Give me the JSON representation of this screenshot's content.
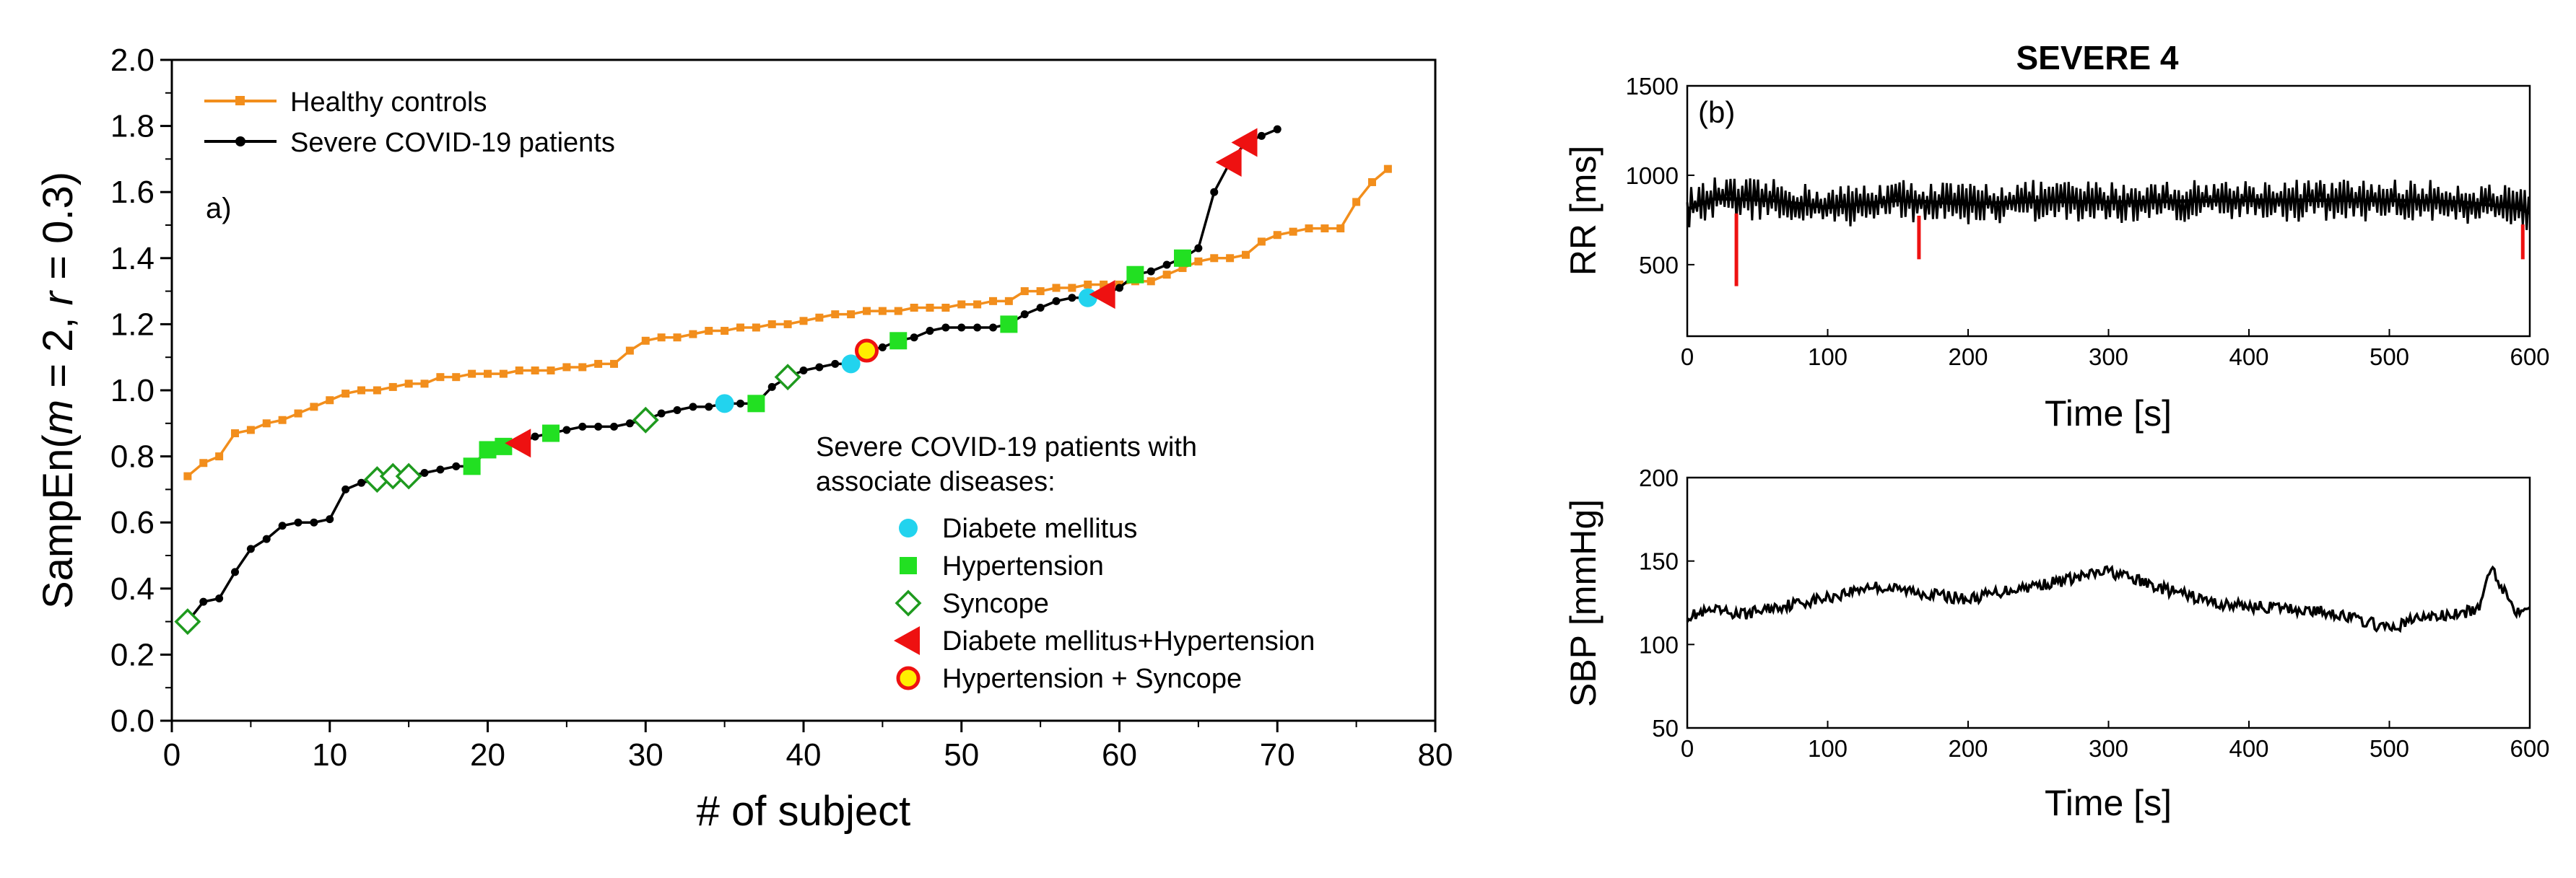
{
  "colors": {
    "healthy": "#f28e1c",
    "severe": "#000000",
    "diabete": "#22d3ee",
    "hypertension": "#22e022",
    "syncope": "#1e9a1e",
    "diab_hyp": "#ee1111",
    "hyp_sync_fill": "#ffee00",
    "hyp_sync_edge": "#ee1111",
    "rr_peaks": "#ee1111"
  },
  "chart_data": [
    {
      "type": "line",
      "panel_label": "a)",
      "xlabel": "# of subject",
      "ylabel_parts": [
        "SampEn(",
        "m",
        " = 2, ",
        "r",
        " = 0.3)"
      ],
      "xlim": [
        0,
        80
      ],
      "ylim": [
        0.0,
        2.0
      ],
      "xticks": [
        0,
        10,
        20,
        30,
        40,
        50,
        60,
        70,
        80
      ],
      "xtick_labels": [
        "0",
        "10",
        "20",
        "30",
        "40",
        "50",
        "60",
        "70",
        "80"
      ],
      "yticks": [
        0.0,
        0.2,
        0.4,
        0.6,
        0.8,
        1.0,
        1.2,
        1.4,
        1.6,
        1.8,
        2.0
      ],
      "ytick_labels": [
        "0.0",
        "0.2",
        "0.4",
        "0.6",
        "0.8",
        "1.0",
        "1.2",
        "1.4",
        "1.6",
        "1.8",
        "2.0"
      ],
      "legend": [
        {
          "label": "Healthy controls",
          "series": "healthy"
        },
        {
          "label": "Severe COVID-19 patients",
          "series": "severe"
        }
      ],
      "series": [
        {
          "name": "Healthy controls",
          "key": "healthy",
          "x": [
            1,
            2,
            3,
            4,
            5,
            6,
            7,
            8,
            9,
            10,
            11,
            12,
            13,
            14,
            15,
            16,
            17,
            18,
            19,
            20,
            21,
            22,
            23,
            24,
            25,
            26,
            27,
            28,
            29,
            30,
            31,
            32,
            33,
            34,
            35,
            36,
            37,
            38,
            39,
            40,
            41,
            42,
            43,
            44,
            45,
            46,
            47,
            48,
            49,
            50,
            51,
            52,
            53,
            54,
            55,
            56,
            57,
            58,
            59,
            60,
            61,
            62,
            63,
            64,
            65,
            66,
            67,
            68,
            69,
            70,
            71,
            72,
            73,
            74,
            75,
            76,
            77
          ],
          "values": [
            0.74,
            0.78,
            0.8,
            0.87,
            0.88,
            0.9,
            0.91,
            0.93,
            0.95,
            0.97,
            0.99,
            1.0,
            1.0,
            1.01,
            1.02,
            1.02,
            1.04,
            1.04,
            1.05,
            1.05,
            1.05,
            1.06,
            1.06,
            1.06,
            1.07,
            1.07,
            1.08,
            1.08,
            1.12,
            1.15,
            1.16,
            1.16,
            1.17,
            1.18,
            1.18,
            1.19,
            1.19,
            1.2,
            1.2,
            1.21,
            1.22,
            1.23,
            1.23,
            1.24,
            1.24,
            1.24,
            1.25,
            1.25,
            1.25,
            1.26,
            1.26,
            1.27,
            1.27,
            1.3,
            1.3,
            1.31,
            1.31,
            1.32,
            1.32,
            1.32,
            1.33,
            1.33,
            1.35,
            1.37,
            1.39,
            1.4,
            1.4,
            1.41,
            1.45,
            1.47,
            1.48,
            1.49,
            1.49,
            1.49,
            1.57,
            1.63,
            1.67
          ]
        },
        {
          "name": "Severe COVID-19 patients",
          "key": "severe",
          "x": [
            1,
            2,
            3,
            4,
            5,
            6,
            7,
            8,
            9,
            10,
            11,
            12,
            13,
            14,
            15,
            16,
            17,
            18,
            19,
            20,
            21,
            22,
            23,
            24,
            25,
            26,
            27,
            28,
            29,
            30,
            31,
            32,
            33,
            34,
            35,
            36,
            37,
            38,
            39,
            40,
            41,
            42,
            43,
            44,
            45,
            46,
            47,
            48,
            49,
            50,
            51,
            52,
            53,
            54,
            55,
            56,
            57,
            58,
            59,
            60,
            61,
            62,
            63,
            64,
            65,
            66,
            67,
            68,
            69,
            70
          ],
          "values": [
            0.3,
            0.36,
            0.37,
            0.45,
            0.52,
            0.55,
            0.59,
            0.6,
            0.6,
            0.61,
            0.7,
            0.72,
            0.73,
            0.74,
            0.74,
            0.75,
            0.76,
            0.77,
            0.77,
            0.82,
            0.83,
            0.84,
            0.86,
            0.87,
            0.88,
            0.89,
            0.89,
            0.89,
            0.9,
            0.91,
            0.93,
            0.94,
            0.95,
            0.95,
            0.96,
            0.96,
            0.96,
            1.01,
            1.04,
            1.06,
            1.07,
            1.08,
            1.08,
            1.12,
            1.13,
            1.15,
            1.16,
            1.18,
            1.19,
            1.19,
            1.19,
            1.19,
            1.2,
            1.23,
            1.25,
            1.27,
            1.28,
            1.28,
            1.29,
            1.31,
            1.35,
            1.36,
            1.38,
            1.4,
            1.43,
            1.6,
            1.69,
            1.75,
            1.77,
            1.79
          ]
        }
      ],
      "markers": [
        {
          "type": "syncope",
          "x": 1,
          "y": 0.3
        },
        {
          "type": "syncope",
          "x": 13,
          "y": 0.73
        },
        {
          "type": "syncope",
          "x": 14,
          "y": 0.74
        },
        {
          "type": "syncope",
          "x": 15,
          "y": 0.74
        },
        {
          "type": "hypertension",
          "x": 19,
          "y": 0.77
        },
        {
          "type": "hypertension",
          "x": 20,
          "y": 0.82
        },
        {
          "type": "hypertension",
          "x": 21,
          "y": 0.83
        },
        {
          "type": "diab_hyp",
          "x": 22,
          "y": 0.84
        },
        {
          "type": "hypertension",
          "x": 24,
          "y": 0.87
        },
        {
          "type": "syncope",
          "x": 30,
          "y": 0.91
        },
        {
          "type": "diabete",
          "x": 35,
          "y": 0.96
        },
        {
          "type": "hypertension",
          "x": 37,
          "y": 0.96
        },
        {
          "type": "syncope",
          "x": 39,
          "y": 1.04
        },
        {
          "type": "diabete",
          "x": 43,
          "y": 1.08
        },
        {
          "type": "hyp_sync",
          "x": 44,
          "y": 1.12
        },
        {
          "type": "hypertension",
          "x": 46,
          "y": 1.15
        },
        {
          "type": "hypertension",
          "x": 53,
          "y": 1.2
        },
        {
          "type": "diabete",
          "x": 58,
          "y": 1.28
        },
        {
          "type": "diab_hyp",
          "x": 59,
          "y": 1.29
        },
        {
          "type": "hypertension",
          "x": 61,
          "y": 1.35
        },
        {
          "type": "hypertension",
          "x": 64,
          "y": 1.4
        },
        {
          "type": "diab_hyp",
          "x": 67,
          "y": 1.69
        },
        {
          "type": "diab_hyp",
          "x": 68,
          "y": 1.75
        }
      ],
      "marker_legend_title": [
        "Severe COVID-19 patients with",
        "associate diseases:"
      ],
      "marker_legend": [
        {
          "type": "diabete",
          "label": "Diabete mellitus"
        },
        {
          "type": "hypertension",
          "label": "Hypertension"
        },
        {
          "type": "syncope",
          "label": "Syncope"
        },
        {
          "type": "diab_hyp",
          "label": "Diabete mellitus+Hypertension"
        },
        {
          "type": "hyp_sync",
          "label": " Hypertension + Syncope"
        }
      ]
    },
    {
      "type": "line",
      "title": "SEVERE 4",
      "panel_label": "(b)",
      "xlabel": "Time [s]",
      "ylabel": "RR [ms]",
      "xlim": [
        0,
        600
      ],
      "ylim": [
        100,
        1500
      ],
      "xticks": [
        0,
        100,
        200,
        300,
        400,
        500,
        600
      ],
      "xtick_labels": [
        "0",
        "100",
        "200",
        "300",
        "400",
        "500",
        "600"
      ],
      "yticks": [
        500,
        1000,
        1500
      ],
      "ytick_labels": [
        "500",
        "1000",
        "1500"
      ],
      "baseline_t": [
        0,
        20,
        60,
        100,
        150,
        200,
        250,
        300,
        350,
        400,
        450,
        500,
        550,
        590,
        600
      ],
      "baseline_v": [
        810,
        870,
        860,
        820,
        860,
        840,
        855,
        850,
        855,
        860,
        860,
        860,
        850,
        820,
        790
      ],
      "osc_amplitude": 120,
      "red_spikes": [
        {
          "t": 35,
          "min": 380
        },
        {
          "t": 165,
          "min": 530
        },
        {
          "t": 595,
          "min": 530
        }
      ]
    },
    {
      "type": "line",
      "xlabel": "Time [s]",
      "ylabel": "SBP [mmHg]",
      "xlim": [
        0,
        600
      ],
      "ylim": [
        50,
        200
      ],
      "xticks": [
        0,
        100,
        200,
        300,
        400,
        500,
        600
      ],
      "xtick_labels": [
        "0",
        "100",
        "200",
        "300",
        "400",
        "500",
        "600"
      ],
      "yticks": [
        50,
        100,
        150,
        200
      ],
      "ytick_labels": [
        "50",
        "100",
        "150",
        "200"
      ],
      "trend_t": [
        0,
        20,
        40,
        60,
        80,
        100,
        130,
        160,
        200,
        230,
        260,
        300,
        340,
        380,
        420,
        460,
        490,
        500,
        520,
        550,
        565,
        572,
        580,
        590,
        600
      ],
      "trend_v": [
        117,
        120,
        118,
        122,
        125,
        128,
        135,
        132,
        127,
        133,
        137,
        144,
        133,
        124,
        122,
        119,
        112,
        109,
        116,
        118,
        122,
        148,
        135,
        120,
        125
      ]
    }
  ]
}
